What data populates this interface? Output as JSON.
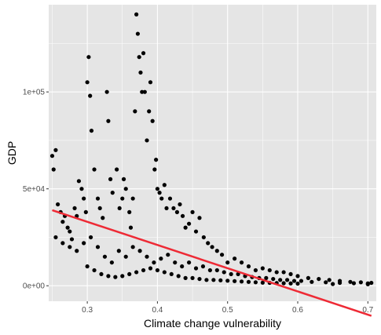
{
  "chart_data": {
    "type": "scatter",
    "title": "",
    "xlabel": "Climate change vulnerability",
    "ylabel": "GDP",
    "xlim": [
      0.245,
      0.712
    ],
    "ylim": [
      -8000,
      145000
    ],
    "x_ticks": [
      0.3,
      0.4,
      0.5,
      0.6,
      0.7
    ],
    "x_tick_labels": [
      "0.3",
      "0.4",
      "0.5",
      "0.6",
      "0.7"
    ],
    "y_ticks": [
      0,
      50000,
      100000
    ],
    "y_tick_labels": [
      "0e+00",
      "5e+04",
      "1e+05"
    ],
    "grid": true,
    "legend": "none",
    "colors": {
      "panel": "#e5e5e5",
      "grid": "#ffffff",
      "points": "#000000",
      "fit_line": "#ee2a35"
    },
    "fit_line": {
      "x": [
        0.25,
        0.705
      ],
      "y": [
        39000,
        -15500
      ]
    },
    "series": [
      {
        "type": "points",
        "x": [
          0.25,
          0.252,
          0.255,
          0.258,
          0.262,
          0.265,
          0.268,
          0.272,
          0.275,
          0.278,
          0.282,
          0.285,
          0.288,
          0.292,
          0.295,
          0.298,
          0.3,
          0.302,
          0.304,
          0.306,
          0.31,
          0.315,
          0.318,
          0.322,
          0.328,
          0.33,
          0.333,
          0.336,
          0.342,
          0.346,
          0.35,
          0.352,
          0.355,
          0.36,
          0.362,
          0.365,
          0.368,
          0.37,
          0.372,
          0.374,
          0.376,
          0.378,
          0.38,
          0.382,
          0.385,
          0.388,
          0.39,
          0.393,
          0.396,
          0.398,
          0.4,
          0.403,
          0.406,
          0.41,
          0.413,
          0.418,
          0.423,
          0.428,
          0.432,
          0.436,
          0.44,
          0.445,
          0.45,
          0.455,
          0.46,
          0.466,
          0.472,
          0.478,
          0.485,
          0.492,
          0.5,
          0.51,
          0.52,
          0.53,
          0.54,
          0.55,
          0.56,
          0.57,
          0.58,
          0.59,
          0.6,
          0.615,
          0.63,
          0.645,
          0.66,
          0.675,
          0.69,
          0.705,
          0.255,
          0.265,
          0.275,
          0.285,
          0.295,
          0.305,
          0.315,
          0.325,
          0.335,
          0.345,
          0.355,
          0.365,
          0.375,
          0.385,
          0.395,
          0.405,
          0.415,
          0.425,
          0.435,
          0.445,
          0.455,
          0.465,
          0.475,
          0.485,
          0.495,
          0.505,
          0.515,
          0.525,
          0.535,
          0.545,
          0.555,
          0.565,
          0.575,
          0.585,
          0.595,
          0.605,
          0.62,
          0.64,
          0.66,
          0.68,
          0.7,
          0.3,
          0.31,
          0.32,
          0.33,
          0.34,
          0.35,
          0.36,
          0.37,
          0.38,
          0.39,
          0.4,
          0.41,
          0.42,
          0.43,
          0.44,
          0.45,
          0.46,
          0.47,
          0.48,
          0.49,
          0.5,
          0.51,
          0.52,
          0.53,
          0.54,
          0.55,
          0.56,
          0.57,
          0.58,
          0.59,
          0.6,
          0.65,
          0.7
        ],
        "y": [
          67000,
          60000,
          70000,
          42000,
          38000,
          33000,
          36000,
          30000,
          28000,
          24000,
          40000,
          36000,
          54000,
          50000,
          45000,
          38000,
          105000,
          118000,
          98000,
          80000,
          60000,
          45000,
          40000,
          35000,
          100000,
          85000,
          55000,
          48000,
          60000,
          40000,
          45000,
          55000,
          50000,
          38000,
          30000,
          45000,
          90000,
          140000,
          130000,
          118000,
          110000,
          100000,
          120000,
          100000,
          75000,
          90000,
          105000,
          85000,
          60000,
          65000,
          50000,
          48000,
          45000,
          52000,
          40000,
          45000,
          40000,
          38000,
          42000,
          36000,
          30000,
          32000,
          38000,
          28000,
          35000,
          25000,
          22000,
          20000,
          18000,
          16000,
          12000,
          14000,
          12000,
          10000,
          8000,
          9000,
          8000,
          7000,
          7000,
          6000,
          5000,
          4000,
          3500,
          3000,
          2500,
          2000,
          1800,
          1500,
          25000,
          22000,
          20000,
          18000,
          22000,
          25000,
          20000,
          15000,
          12000,
          18000,
          15000,
          20000,
          18000,
          15000,
          12000,
          14000,
          16000,
          12000,
          10000,
          12000,
          9000,
          10000,
          8000,
          8000,
          7000,
          6000,
          6000,
          5000,
          4500,
          4000,
          4000,
          3500,
          3000,
          3000,
          2500,
          2500,
          2000,
          1800,
          1500,
          1300,
          1200,
          10000,
          8000,
          6000,
          5000,
          4500,
          5000,
          6000,
          7000,
          8000,
          9000,
          8000,
          7000,
          6000,
          5000,
          4000,
          4000,
          3500,
          3000,
          3000,
          2800,
          2600,
          2400,
          2200,
          2000,
          1800,
          1600,
          1500,
          1400,
          1300,
          1200,
          1100,
          900,
          800
        ]
      }
    ]
  }
}
